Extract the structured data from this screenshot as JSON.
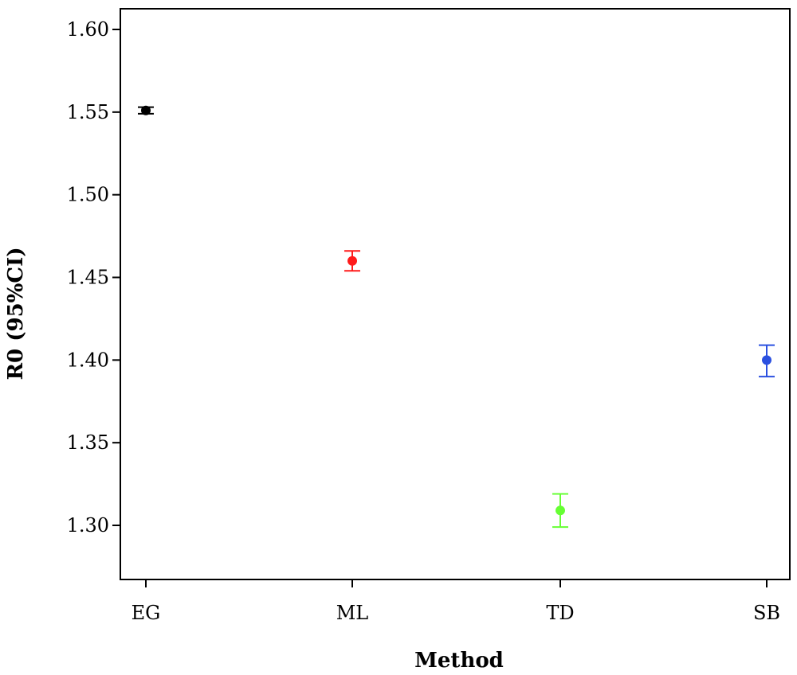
{
  "chart_data": {
    "type": "scatter",
    "subtype": "point-with-error-bars",
    "title": "",
    "xlabel": "Method",
    "ylabel": "R0 (95%CI)",
    "categories": [
      "EG",
      "ML",
      "TD",
      "SB"
    ],
    "ylim": [
      1.265,
      1.615
    ],
    "yticks": [
      1.3,
      1.35,
      1.4,
      1.45,
      1.5,
      1.55,
      1.6
    ],
    "ytick_labels": [
      "1.30",
      "1.35",
      "1.40",
      "1.45",
      "1.50",
      "1.55",
      "1.60"
    ],
    "grid": false,
    "legend": "none",
    "points": [
      {
        "category": "EG",
        "value": 1.551,
        "lower": 1.549,
        "upper": 1.553,
        "color": "#000000"
      },
      {
        "category": "ML",
        "value": 1.46,
        "lower": 1.454,
        "upper": 1.466,
        "color": "#ff1a1a"
      },
      {
        "category": "TD",
        "value": 1.309,
        "lower": 1.299,
        "upper": 1.319,
        "color": "#66ff33"
      },
      {
        "category": "SB",
        "value": 1.4,
        "lower": 1.39,
        "upper": 1.409,
        "color": "#2b50e0"
      }
    ]
  }
}
